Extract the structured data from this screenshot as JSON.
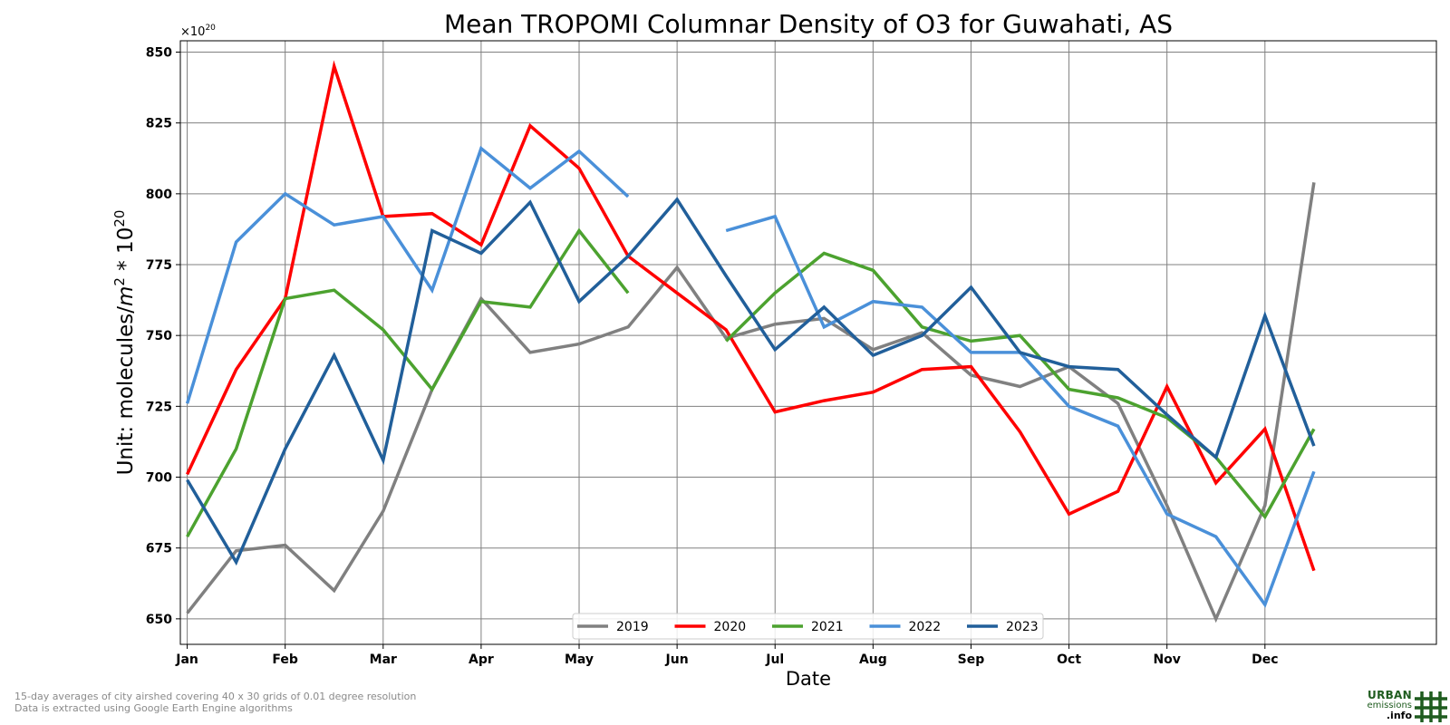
{
  "chart_data": {
    "type": "line",
    "title": "Mean TROPOMI Columnar Density of O3 for Guwahati, AS",
    "xlabel": "Date",
    "ylabel": "Unit: molecules/m^2 * 10^20",
    "ylabel_parts": {
      "main": "Unit: molecules/",
      "m": "m",
      "exp2": "2",
      "mult": " * 10",
      "exp20": "20"
    },
    "y_offset_label": {
      "base": "×10",
      "exp": "20"
    },
    "ylim": [
      641,
      854
    ],
    "yticks": [
      650,
      675,
      700,
      725,
      750,
      775,
      800,
      825,
      850
    ],
    "xlim": [
      0.93,
      13.75
    ],
    "xticks": [
      {
        "x": 1,
        "label": "Jan"
      },
      {
        "x": 2,
        "label": "Feb"
      },
      {
        "x": 3,
        "label": "Mar"
      },
      {
        "x": 4,
        "label": "Apr"
      },
      {
        "x": 5,
        "label": "May"
      },
      {
        "x": 6,
        "label": "Jun"
      },
      {
        "x": 7,
        "label": "Jul"
      },
      {
        "x": 8,
        "label": "Aug"
      },
      {
        "x": 9,
        "label": "Sep"
      },
      {
        "x": 10,
        "label": "Oct"
      },
      {
        "x": 11,
        "label": "Nov"
      },
      {
        "x": 12,
        "label": "Dec"
      }
    ],
    "x": [
      1,
      1.5,
      2,
      2.5,
      3,
      3.5,
      4,
      4.5,
      5,
      5.5,
      6,
      6.5,
      7,
      7.5,
      8,
      8.5,
      9,
      9.5,
      10,
      10.5,
      11,
      11.5,
      12,
      12.5
    ],
    "grid": true,
    "legend_position": "bottom-center",
    "series": [
      {
        "name": "2019",
        "color": "#808080",
        "values": [
          652,
          674,
          676,
          660,
          688,
          731,
          763,
          744,
          747,
          753,
          774,
          749,
          754,
          756,
          745,
          751,
          736,
          732,
          739,
          726,
          690,
          650,
          690,
          804
        ]
      },
      {
        "name": "2020",
        "color": "#ff0000",
        "values": [
          701,
          738,
          763,
          845,
          792,
          793,
          782,
          824,
          809,
          778,
          765,
          752,
          723,
          727,
          730,
          738,
          739,
          716,
          687,
          695,
          732,
          698,
          717,
          667
        ]
      },
      {
        "name": "2021",
        "color": "#4ca22f",
        "values": [
          679,
          710,
          763,
          766,
          752,
          731,
          762,
          760,
          787,
          765,
          null,
          748,
          765,
          779,
          773,
          753,
          748,
          750,
          731,
          728,
          721,
          707,
          686,
          717
        ]
      },
      {
        "name": "2022",
        "color": "#4a90d9",
        "values": [
          726,
          783,
          800,
          789,
          792,
          766,
          816,
          802,
          815,
          799,
          null,
          787,
          792,
          753,
          762,
          760,
          744,
          744,
          725,
          718,
          687,
          679,
          655,
          702
        ]
      },
      {
        "name": "2023",
        "color": "#215f9a",
        "values": [
          699,
          670,
          710,
          743,
          706,
          787,
          779,
          797,
          762,
          778,
          798,
          771,
          745,
          760,
          743,
          750,
          767,
          744,
          739,
          738,
          722,
          707,
          757,
          711
        ]
      }
    ]
  },
  "footer": {
    "line1": "15-day averages of city airshed covering 40 x 30 grids of 0.01 degree resolution",
    "line2": "Data is extracted using Google Earth Engine algorithms"
  },
  "logo": {
    "line1": "URBAN",
    "line2": "emissions",
    "line3": ".info",
    "icon": "grid-hash-icon"
  }
}
